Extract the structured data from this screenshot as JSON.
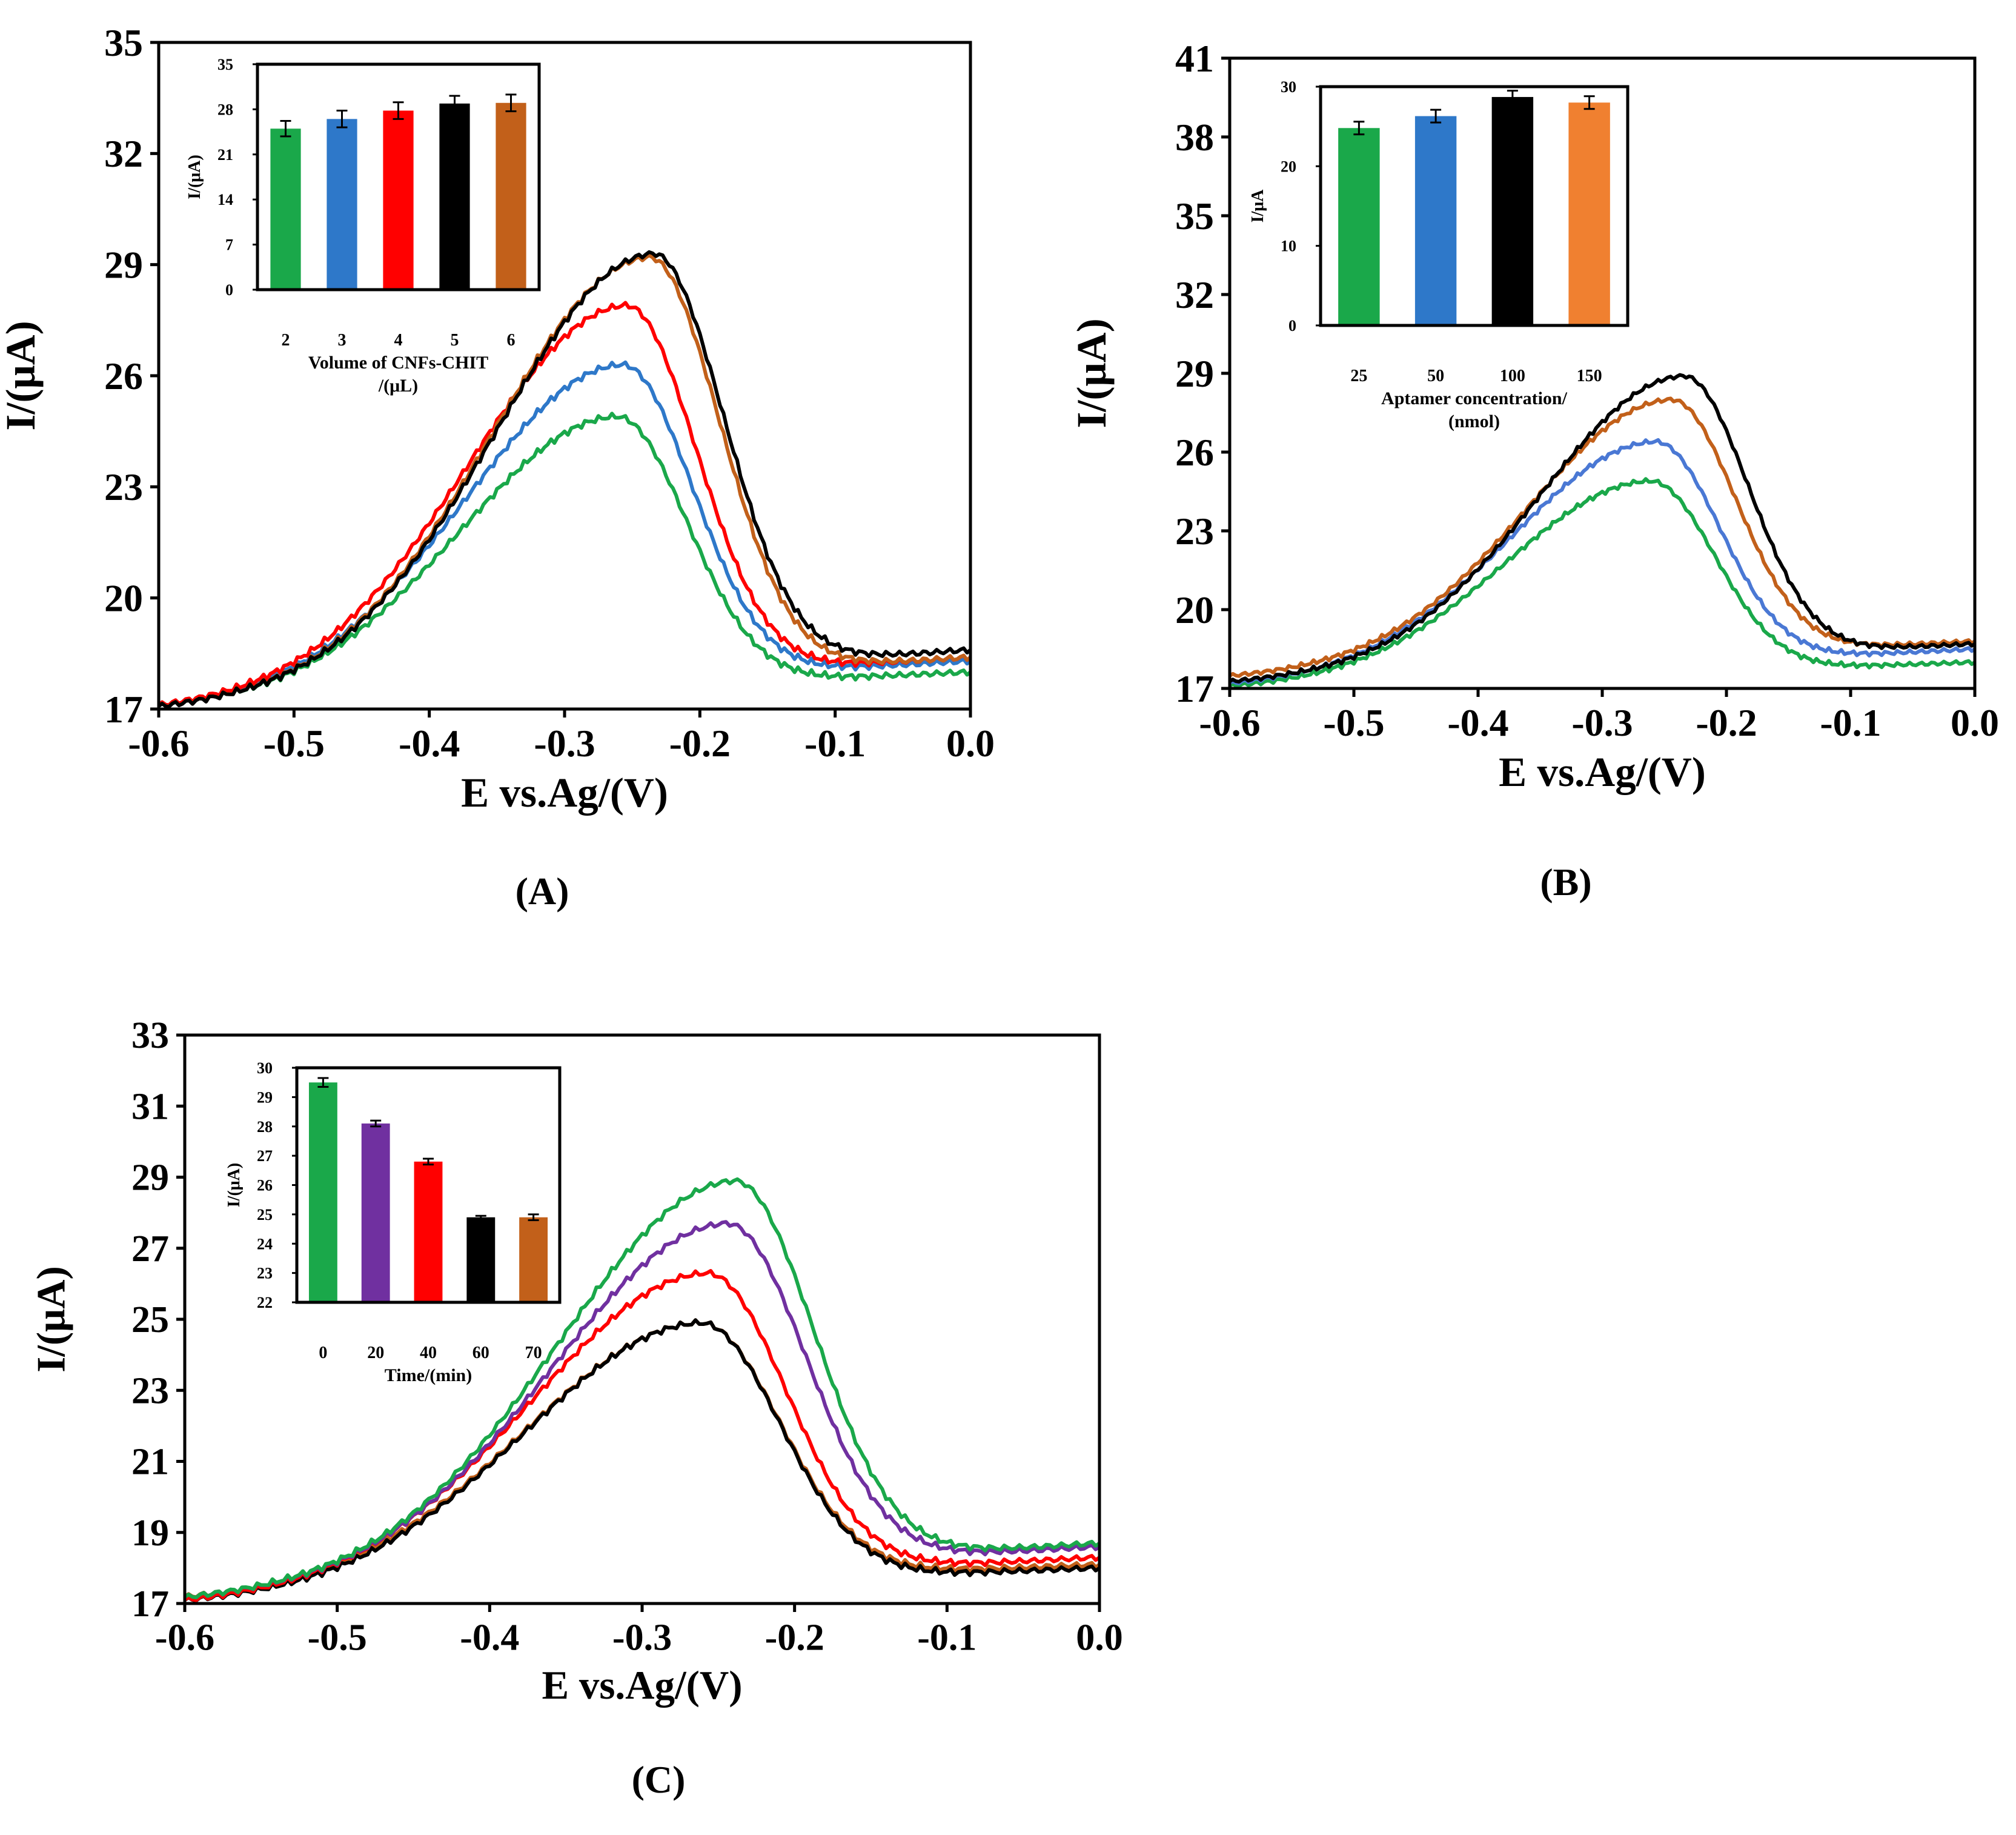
{
  "colors": {
    "green": "#1aa84a",
    "blue": "#2e78c9",
    "red": "#ff0000",
    "black": "#000000",
    "brown": "#c2601a",
    "orange": "#f08030",
    "purple": "#7030a0",
    "lightblue": "#4a78d4"
  },
  "chart_data": [
    {
      "id": "A",
      "type": "line",
      "panel_label": "(A)",
      "xlabel": "E vs.Ag/(V)",
      "ylabel": "I/(μA)",
      "xlim": [
        -0.6,
        0.0
      ],
      "ylim": [
        17,
        35
      ],
      "x_ticks": [
        "-0.6",
        "-0.5",
        "-0.4",
        "-0.3",
        "-0.2",
        "-0.1",
        "0.0"
      ],
      "y_ticks": [
        "17",
        "20",
        "23",
        "26",
        "29",
        "32",
        "35"
      ],
      "series": [
        {
          "name": "2",
          "color": "green",
          "start": 17.0,
          "end": 18.0,
          "peak_x": -0.262,
          "peak_y": 24.9
        },
        {
          "name": "3",
          "color": "blue",
          "start": 17.0,
          "end": 18.3,
          "peak_x": -0.258,
          "peak_y": 26.3
        },
        {
          "name": "4",
          "color": "red",
          "start": 17.0,
          "end": 18.4,
          "peak_x": -0.255,
          "peak_y": 27.9
        },
        {
          "name": "6",
          "color": "brown",
          "start": 17.0,
          "end": 18.4,
          "peak_x": -0.238,
          "peak_y": 29.2
        },
        {
          "name": "5",
          "color": "black",
          "start": 17.0,
          "end": 18.6,
          "peak_x": -0.235,
          "peak_y": 29.3
        }
      ],
      "inset": {
        "type": "bar",
        "xlabel": "Volume of CNFs-CHIT",
        "xlabel_line2": "/(μL)",
        "ylabel": "I/(μA)",
        "ylim": [
          0,
          35
        ],
        "y_ticks": [
          "0",
          "7",
          "14",
          "21",
          "28",
          "35"
        ],
        "categories": [
          "2",
          "3",
          "4",
          "5",
          "6"
        ],
        "values": [
          25.0,
          26.5,
          27.8,
          28.9,
          29.0
        ],
        "errors": [
          1.2,
          1.3,
          1.3,
          1.2,
          1.3
        ],
        "colors": [
          "green",
          "blue",
          "red",
          "black",
          "brown"
        ]
      }
    },
    {
      "id": "B",
      "type": "line",
      "panel_label": "(B)",
      "xlabel": "E vs.Ag/(V)",
      "ylabel": "I/(μA)",
      "xlim": [
        -0.6,
        0.0
      ],
      "ylim": [
        17,
        41
      ],
      "x_ticks": [
        "-0.6",
        "-0.5",
        "-0.4",
        "-0.3",
        "-0.2",
        "-0.1",
        "0.0"
      ],
      "y_ticks": [
        "17",
        "20",
        "23",
        "26",
        "29",
        "32",
        "35",
        "38",
        "41"
      ],
      "series": [
        {
          "name": "25",
          "color": "green",
          "start": 17.0,
          "end": 18.0,
          "peak_x": -0.262,
          "peak_y": 24.9
        },
        {
          "name": "50",
          "color": "lightblue",
          "start": 17.1,
          "end": 18.5,
          "peak_x": -0.258,
          "peak_y": 26.4
        },
        {
          "name": "150",
          "color": "brown",
          "start": 17.4,
          "end": 18.8,
          "peak_x": -0.245,
          "peak_y": 28.0
        },
        {
          "name": "100",
          "color": "black",
          "start": 17.2,
          "end": 18.7,
          "peak_x": -0.235,
          "peak_y": 28.9
        }
      ],
      "inset": {
        "type": "bar",
        "xlabel": "Aptamer concentration/",
        "xlabel_line2": "(nmol)",
        "ylabel": "I/μA",
        "ylim": [
          0,
          30
        ],
        "y_ticks": [
          "0",
          "10",
          "20",
          "30"
        ],
        "categories": [
          "25",
          "50",
          "100",
          "150"
        ],
        "values": [
          24.8,
          26.3,
          28.7,
          28.0
        ],
        "errors": [
          0.8,
          0.8,
          0.8,
          0.8
        ],
        "colors": [
          "green",
          "blue",
          "black",
          "orange"
        ]
      }
    },
    {
      "id": "C",
      "type": "line",
      "panel_label": "(C)",
      "xlabel": "E vs.Ag/(V)",
      "ylabel": "I/(μA)",
      "xlim": [
        -0.6,
        0.0
      ],
      "ylim": [
        17,
        33
      ],
      "x_ticks": [
        "-0.6",
        "-0.5",
        "-0.4",
        "-0.3",
        "-0.2",
        "-0.1",
        "0.0"
      ],
      "y_ticks": [
        "17",
        "19",
        "21",
        "23",
        "25",
        "27",
        "29",
        "31",
        "33"
      ],
      "series": [
        {
          "name": "70",
          "color": "brown",
          "start": 17.1,
          "end": 18.1,
          "peak_x": -0.262,
          "peak_y": 24.9
        },
        {
          "name": "60",
          "color": "black",
          "start": 17.0,
          "end": 18.0,
          "peak_x": -0.262,
          "peak_y": 24.9
        },
        {
          "name": "40",
          "color": "red",
          "start": 17.0,
          "end": 18.3,
          "peak_x": -0.258,
          "peak_y": 26.3
        },
        {
          "name": "20",
          "color": "purple",
          "start": 17.1,
          "end": 18.6,
          "peak_x": -0.245,
          "peak_y": 27.7
        },
        {
          "name": "0",
          "color": "green",
          "start": 17.1,
          "end": 18.7,
          "peak_x": -0.24,
          "peak_y": 28.9
        }
      ],
      "inset": {
        "type": "bar",
        "xlabel": "Time/(min)",
        "xlabel_line2": "",
        "ylabel": "I/(μA)",
        "ylim": [
          22,
          30
        ],
        "y_ticks": [
          "22",
          "23",
          "24",
          "25",
          "26",
          "27",
          "28",
          "29",
          "30"
        ],
        "categories": [
          "0",
          "20",
          "40",
          "60",
          "70"
        ],
        "values": [
          29.5,
          28.1,
          26.8,
          24.9,
          24.9
        ],
        "errors": [
          0.15,
          0.1,
          0.1,
          0.05,
          0.1
        ],
        "colors": [
          "green",
          "purple",
          "red",
          "black",
          "brown"
        ]
      }
    }
  ]
}
